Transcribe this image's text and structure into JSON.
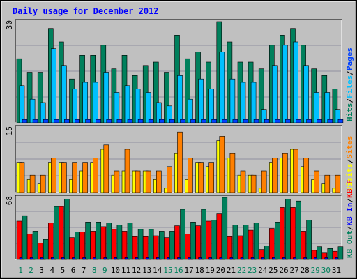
{
  "colors": {
    "background": "#c0c0c0",
    "bevel_light": "#ffffff",
    "bevel_dark": "#808080",
    "plot_bg": "#c0c0c0",
    "grid": "#9090a0",
    "title": "#0000ff",
    "day_black": "#000000",
    "day_weekend": "#00805c",
    "hits": "#00805c",
    "files": "#00c0ff",
    "pages": "#0040ff",
    "visits": "#ffff00",
    "sites": "#ff8000",
    "kb_f": "#ff0000",
    "kb_in": "#0000ff",
    "kb_out": "#00805c",
    "sep": "#000000"
  },
  "chart_data": {
    "type": "bar",
    "title": "Daily usage for December 2012",
    "categories": [
      "1",
      "2",
      "3",
      "4",
      "5",
      "6",
      "7",
      "8",
      "9",
      "10",
      "11",
      "12",
      "13",
      "14",
      "15",
      "16",
      "17",
      "18",
      "19",
      "20",
      "21",
      "22",
      "23",
      "24",
      "25",
      "26",
      "27",
      "28",
      "29",
      "30",
      "31"
    ],
    "weekend_days": [
      "1",
      "2",
      "8",
      "9",
      "15",
      "16",
      "22",
      "23",
      "29",
      "30"
    ],
    "panels": [
      {
        "name": "hits-files-pages",
        "ymax_label": "30",
        "ylim": [
          0,
          30
        ],
        "legend": [
          {
            "text": "Hits",
            "color": "hits"
          },
          {
            "text": "/",
            "color": "sep"
          },
          {
            "text": "Files",
            "color": "files"
          },
          {
            "text": "/",
            "color": "sep"
          },
          {
            "text": "Pages",
            "color": "pages"
          }
        ],
        "series": [
          {
            "name": "Hits",
            "color": "hits",
            "values": [
              19,
              15,
              15,
              28,
              24,
              13,
              20,
              20,
              23,
              16,
              20,
              14,
              17,
              18,
              15,
              26,
              19,
              21,
              18,
              30,
              24,
              18,
              18,
              16,
              23,
              26,
              28,
              23,
              16,
              14,
              10
            ]
          },
          {
            "name": "Files",
            "color": "files",
            "values": [
              11,
              7,
              6,
              22,
              17,
              10,
              12,
              12,
              15,
              9,
              11,
              10,
              9,
              6,
              5,
              14,
              7,
              13,
              10,
              21,
              13,
              12,
              12,
              4,
              17,
              23,
              24,
              17,
              9,
              9,
              4
            ]
          },
          {
            "name": "Pages",
            "color": "pages",
            "values": [
              1,
              1,
              1,
              1,
              1,
              1,
              1,
              1,
              1,
              1,
              1,
              1,
              1,
              1,
              1,
              1,
              1,
              1,
              1,
              1,
              1,
              1,
              1,
              1,
              1,
              1,
              1,
              1,
              1,
              1,
              1
            ]
          }
        ]
      },
      {
        "name": "visits-sites",
        "ymax_label": "15",
        "ylim": [
          0,
          15
        ],
        "legend": [
          {
            "text": "Visits",
            "color": "visits"
          },
          {
            "text": "/",
            "color": "sep"
          },
          {
            "text": "Sites",
            "color": "sites"
          }
        ],
        "series": [
          {
            "name": "Visits",
            "color": "visits",
            "values": [
              7,
              3,
              2,
              7,
              7,
              3,
              5,
              7,
              10,
              4,
              5,
              5,
              5,
              3,
              1,
              9,
              3,
              7,
              6,
              12,
              8,
              4,
              4,
              1,
              7,
              8,
              10,
              6,
              3,
              2,
              1
            ]
          },
          {
            "name": "Sites",
            "color": "sites",
            "values": [
              7,
              4,
              4,
              8,
              7,
              7,
              7,
              8,
              11,
              5,
              10,
              5,
              5,
              5,
              6,
              14,
              8,
              7,
              7,
              13,
              9,
              5,
              4,
              5,
              8,
              9,
              10,
              8,
              5,
              4,
              4
            ]
          }
        ]
      },
      {
        "name": "kb-f-in-out",
        "ymax_label": "68",
        "ylim": [
          0,
          68
        ],
        "legend": [
          {
            "text": "KB Out",
            "color": "kb_out"
          },
          {
            "text": "/",
            "color": "sep"
          },
          {
            "text": "KB In",
            "color": "kb_in"
          },
          {
            "text": "/",
            "color": "sep"
          },
          {
            "text": "KB F",
            "color": "kb_f"
          }
        ],
        "series": [
          {
            "name": "KB F",
            "color": "kb_f",
            "values": [
              42,
              28,
              18,
              40,
              58,
              24,
              30,
              31,
              36,
              33,
              31,
              25,
              25,
              26,
              24,
              37,
              28,
              37,
              42,
              50,
              25,
              26,
              32,
              11,
              34,
              57,
              57,
              31,
              10,
              7,
              9
            ]
          },
          {
            "name": "KB In",
            "color": "kb_in",
            "values": [
              2,
              2,
              2,
              2,
              2,
              2,
              2,
              2,
              2,
              2,
              2,
              2,
              2,
              2,
              2,
              2,
              2,
              2,
              2,
              2,
              2,
              2,
              2,
              2,
              2,
              2,
              2,
              2,
              2,
              2,
              2
            ]
          },
          {
            "name": "KB Out",
            "color": "kb_out",
            "values": [
              48,
              31,
              22,
              58,
              66,
              30,
              41,
              41,
              40,
              38,
              40,
              33,
              33,
              31,
              31,
              55,
              41,
              55,
              43,
              70,
              38,
              38,
              40,
              15,
              41,
              66,
              64,
              43,
              14,
              12,
              14
            ]
          }
        ]
      }
    ]
  }
}
